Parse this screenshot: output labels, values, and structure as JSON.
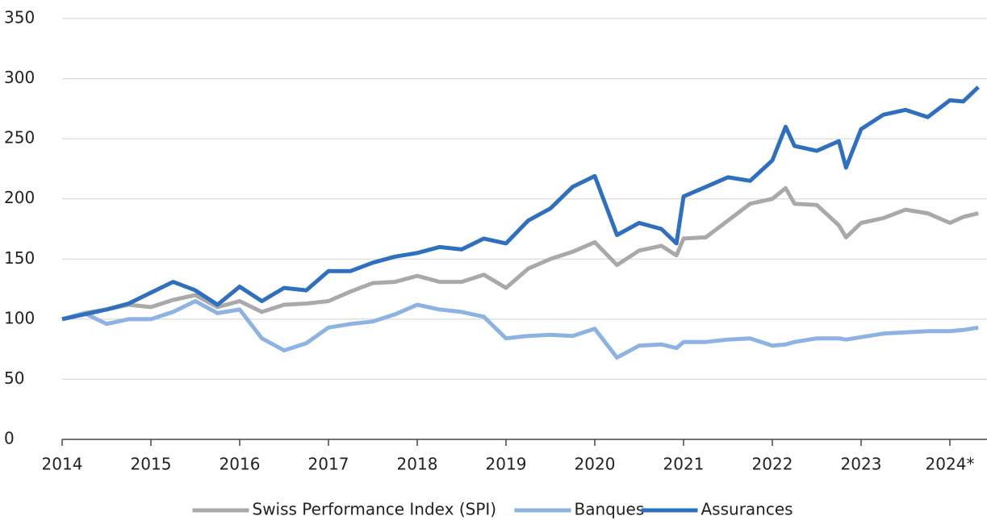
{
  "chart_data": {
    "type": "line",
    "x": [
      2014,
      2014.25,
      2014.5,
      2014.75,
      2015,
      2015.25,
      2015.5,
      2015.75,
      2016,
      2016.25,
      2016.5,
      2016.75,
      2017,
      2017.25,
      2017.5,
      2017.75,
      2018,
      2018.25,
      2018.5,
      2018.75,
      2019,
      2019.25,
      2019.5,
      2019.75,
      2020,
      2020.25,
      2020.5,
      2020.75,
      2020.92,
      2021,
      2021.25,
      2021.5,
      2021.75,
      2022,
      2022.15,
      2022.25,
      2022.5,
      2022.75,
      2022.83,
      2023,
      2023.25,
      2023.5,
      2023.75,
      2024,
      2024.15,
      2024.32
    ],
    "series": [
      {
        "name": "Swiss Performance Index (SPI)",
        "color": "#a9a9a9",
        "values": [
          100,
          105,
          108,
          112,
          110,
          116,
          120,
          110,
          115,
          106,
          112,
          113,
          115,
          123,
          130,
          131,
          136,
          131,
          131,
          137,
          126,
          142,
          150,
          156,
          164,
          145,
          157,
          161,
          153,
          167,
          168,
          182,
          196,
          200,
          209,
          196,
          195,
          178,
          168,
          180,
          184,
          191,
          188,
          180,
          185,
          188
        ]
      },
      {
        "name": "Banques",
        "color": "#8db3e2",
        "values": [
          100,
          105,
          96,
          100,
          100,
          106,
          115,
          105,
          108,
          84,
          74,
          80,
          93,
          96,
          98,
          104,
          112,
          108,
          106,
          102,
          84,
          86,
          87,
          86,
          92,
          68,
          78,
          79,
          76,
          81,
          81,
          83,
          84,
          78,
          79,
          81,
          84,
          84,
          83,
          85,
          88,
          89,
          90,
          90,
          91,
          93
        ]
      },
      {
        "name": "Assurances",
        "color": "#2e6fc0",
        "values": [
          100,
          104,
          108,
          113,
          122,
          131,
          124,
          112,
          127,
          115,
          126,
          124,
          140,
          140,
          147,
          152,
          155,
          160,
          158,
          167,
          163,
          182,
          192,
          210,
          219,
          170,
          180,
          175,
          163,
          202,
          210,
          218,
          215,
          232,
          260,
          244,
          240,
          248,
          226,
          258,
          270,
          274,
          268,
          282,
          281,
          293
        ]
      }
    ],
    "xlim": [
      2014,
      2024.4
    ],
    "xticks": [
      2014,
      2015,
      2016,
      2017,
      2018,
      2019,
      2020,
      2021,
      2022,
      2023,
      {
        "value": 2024,
        "label": "2024*"
      }
    ],
    "ylim": [
      0,
      350
    ],
    "yticks": [
      0,
      50,
      100,
      150,
      200,
      250,
      300,
      350
    ],
    "grid": true
  }
}
